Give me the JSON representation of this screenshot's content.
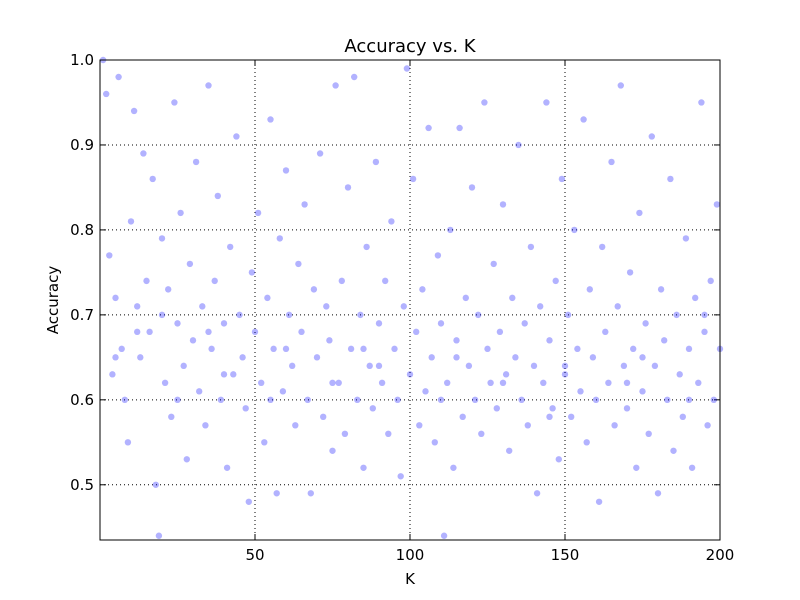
{
  "chart_data": {
    "type": "scatter",
    "title": "Accuracy vs. K",
    "xlabel": "K",
    "ylabel": "Accuracy",
    "x": [
      1,
      2,
      3,
      4,
      5,
      6,
      7,
      8,
      9,
      10,
      11,
      12,
      13,
      14,
      15,
      16,
      17,
      18,
      19,
      20,
      21,
      22,
      23,
      24,
      25,
      26,
      27,
      28,
      29,
      30,
      31,
      32,
      33,
      34,
      35,
      36,
      37,
      38,
      39,
      40,
      41,
      42,
      43,
      44,
      45,
      46,
      47,
      48,
      49,
      50,
      51,
      52,
      53,
      54,
      55,
      56,
      57,
      58,
      59,
      60,
      61,
      62,
      63,
      64,
      65,
      66,
      67,
      68,
      69,
      70,
      71,
      72,
      73,
      74,
      75,
      76,
      77,
      78,
      79,
      80,
      81,
      82,
      83,
      84,
      85,
      86,
      87,
      88,
      89,
      90,
      91,
      92,
      93,
      94,
      95,
      96,
      97,
      98,
      99,
      100,
      101,
      102,
      103,
      104,
      105,
      106,
      107,
      108,
      109,
      110,
      111,
      112,
      113,
      114,
      115,
      116,
      117,
      118,
      119,
      120,
      121,
      122,
      123,
      124,
      125,
      126,
      127,
      128,
      129,
      130,
      131,
      132,
      133,
      134,
      135,
      136,
      137,
      138,
      139,
      140,
      141,
      142,
      143,
      144,
      145,
      146,
      147,
      148,
      149,
      150,
      151,
      152,
      153,
      154,
      155,
      156,
      157,
      158,
      159,
      160,
      161,
      162,
      163,
      164,
      165,
      166,
      167,
      168,
      169,
      170,
      171,
      172,
      173,
      174,
      175,
      176,
      177,
      178,
      179,
      180,
      181,
      182,
      183,
      184,
      185,
      186,
      187,
      188,
      189,
      190,
      191,
      192,
      193,
      194,
      195,
      196,
      197,
      198,
      199,
      200,
      5,
      12,
      25,
      40,
      60,
      75,
      90,
      110,
      130,
      150,
      170,
      190,
      20,
      35,
      55,
      85,
      115,
      145,
      175,
      195
    ],
    "values": [
      1.0,
      0.96,
      0.77,
      0.63,
      0.72,
      0.98,
      0.66,
      0.6,
      0.55,
      0.81,
      0.94,
      0.71,
      0.65,
      0.89,
      0.74,
      0.68,
      0.86,
      0.5,
      0.44,
      0.79,
      0.62,
      0.73,
      0.58,
      0.95,
      0.69,
      0.82,
      0.64,
      0.53,
      0.76,
      0.67,
      0.88,
      0.61,
      0.71,
      0.57,
      0.97,
      0.66,
      0.74,
      0.84,
      0.6,
      0.69,
      0.52,
      0.78,
      0.63,
      0.91,
      0.7,
      0.65,
      0.59,
      0.48,
      0.75,
      0.68,
      0.82,
      0.62,
      0.55,
      0.72,
      0.93,
      0.66,
      0.49,
      0.79,
      0.61,
      0.87,
      0.7,
      0.64,
      0.57,
      0.76,
      0.68,
      0.83,
      0.6,
      0.49,
      0.73,
      0.65,
      0.89,
      0.58,
      0.71,
      0.67,
      0.54,
      0.97,
      0.62,
      0.74,
      0.56,
      0.85,
      0.66,
      0.98,
      0.6,
      0.7,
      0.52,
      0.78,
      0.64,
      0.59,
      0.88,
      0.69,
      0.62,
      0.74,
      0.56,
      0.81,
      0.66,
      0.6,
      0.51,
      0.71,
      0.99,
      0.63,
      0.86,
      0.68,
      0.57,
      0.73,
      0.61,
      0.92,
      0.65,
      0.55,
      0.77,
      0.69,
      0.44,
      0.62,
      0.8,
      0.52,
      0.67,
      0.92,
      0.58,
      0.72,
      0.64,
      0.85,
      0.6,
      0.7,
      0.56,
      0.95,
      0.66,
      0.62,
      0.76,
      0.59,
      0.68,
      0.83,
      0.63,
      0.54,
      0.72,
      0.65,
      0.9,
      0.6,
      0.69,
      0.57,
      0.78,
      0.64,
      0.49,
      0.71,
      0.62,
      0.95,
      0.67,
      0.59,
      0.74,
      0.53,
      0.86,
      0.63,
      0.7,
      0.58,
      0.8,
      0.66,
      0.61,
      0.93,
      0.55,
      0.73,
      0.65,
      0.6,
      0.48,
      0.78,
      0.68,
      0.62,
      0.88,
      0.57,
      0.71,
      0.97,
      0.64,
      0.59,
      0.75,
      0.66,
      0.52,
      0.82,
      0.61,
      0.69,
      0.56,
      0.91,
      0.64,
      0.49,
      0.73,
      0.67,
      0.6,
      0.86,
      0.54,
      0.7,
      0.63,
      0.58,
      0.79,
      0.66,
      0.52,
      0.72,
      0.62,
      0.95,
      0.68,
      0.57,
      0.74,
      0.6,
      0.83,
      0.66,
      0.65,
      0.68,
      0.6,
      0.63,
      0.66,
      0.62,
      0.64,
      0.6,
      0.62,
      0.64,
      0.62,
      0.6,
      0.7,
      0.68,
      0.6,
      0.66,
      0.65,
      0.58,
      0.65,
      0.7
    ],
    "color": "#0000ff",
    "xlim": [
      0,
      200
    ],
    "ylim": [
      0.435,
      1.0
    ],
    "xticks": [
      50,
      100,
      150,
      200
    ],
    "yticks": [
      0.5,
      0.6,
      0.7,
      0.8,
      0.9,
      {
        "value": 1.0,
        "label": "1.0"
      }
    ],
    "grid": true
  }
}
